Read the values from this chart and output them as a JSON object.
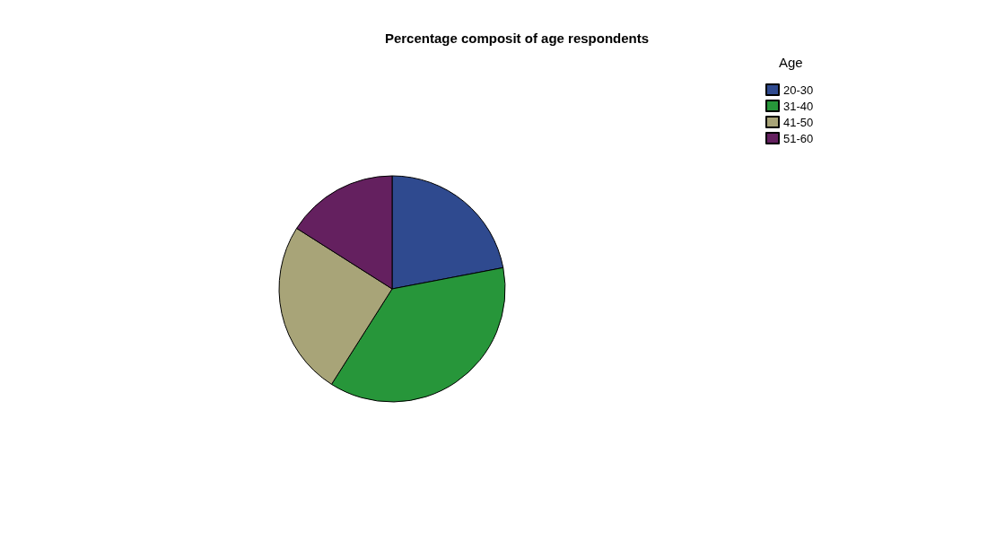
{
  "chart_data": {
    "type": "pie",
    "title": "Percentage composit of age respondents",
    "legend_title": "Age",
    "categories": [
      "20-30",
      "31-40",
      "41-50",
      "51-60"
    ],
    "values": [
      22,
      37,
      25,
      16
    ],
    "colors": [
      "#2f4a8f",
      "#27963a",
      "#a8a478",
      "#64205f"
    ],
    "legend": "top right"
  }
}
